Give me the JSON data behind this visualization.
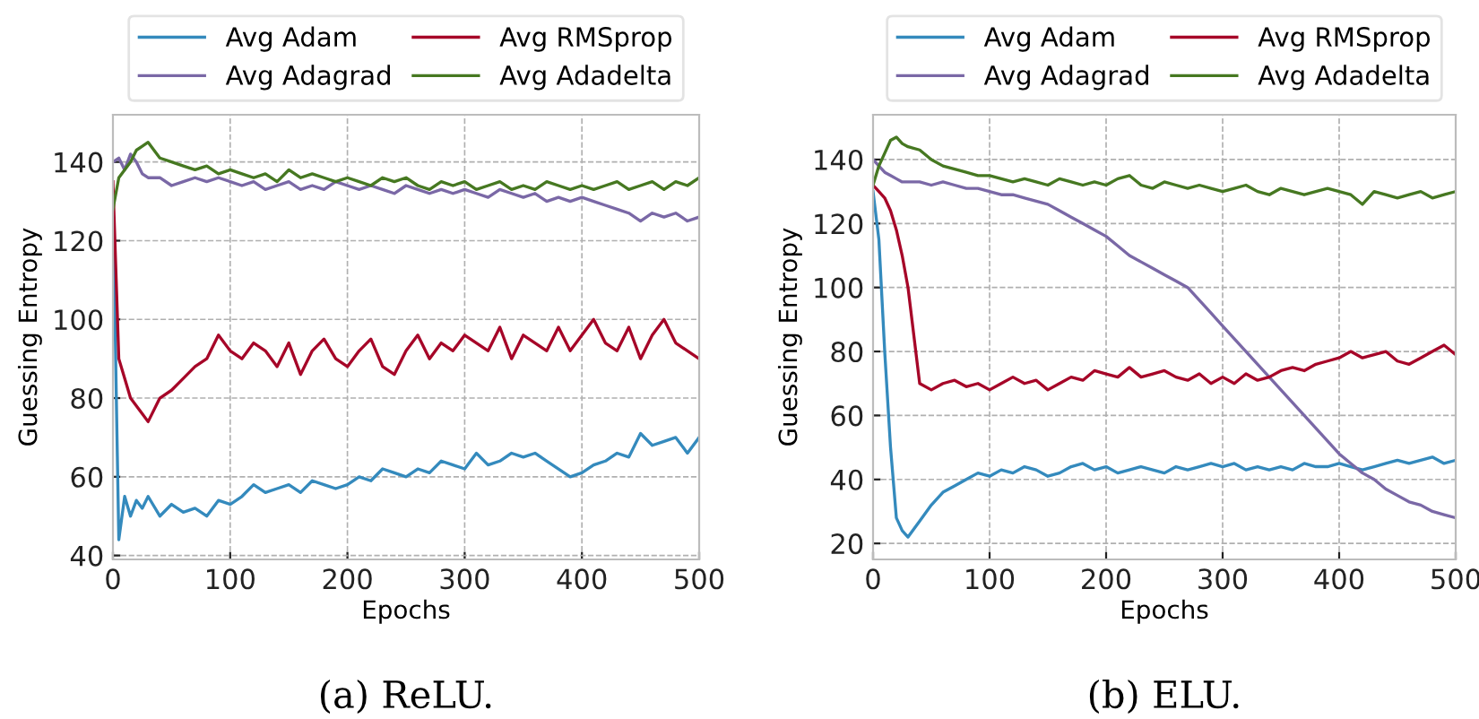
{
  "chart_data": [
    {
      "type": "line",
      "title": "(a) ReLU.",
      "xlabel": "Epochs",
      "ylabel": "Guessing Entropy",
      "x": [
        0,
        5,
        10,
        15,
        20,
        25,
        30,
        40,
        50,
        60,
        70,
        80,
        90,
        100,
        110,
        120,
        130,
        140,
        150,
        160,
        170,
        180,
        190,
        200,
        210,
        220,
        230,
        240,
        250,
        260,
        270,
        280,
        290,
        300,
        310,
        320,
        330,
        340,
        350,
        360,
        370,
        380,
        390,
        400,
        410,
        420,
        430,
        440,
        450,
        460,
        470,
        480,
        490,
        500
      ],
      "series": [
        {
          "name": "Avg Adam",
          "color": "#348abd",
          "values": [
            130,
            44,
            55,
            50,
            54,
            52,
            55,
            50,
            53,
            51,
            52,
            50,
            54,
            53,
            55,
            58,
            56,
            57,
            58,
            56,
            59,
            58,
            57,
            58,
            60,
            59,
            62,
            61,
            60,
            62,
            61,
            64,
            63,
            62,
            66,
            63,
            64,
            66,
            65,
            66,
            64,
            62,
            60,
            61,
            63,
            64,
            66,
            65,
            71,
            68,
            69,
            70,
            66,
            70
          ]
        },
        {
          "name": "Avg Adagrad",
          "color": "#7a68a6",
          "values": [
            140,
            141,
            138,
            142,
            140,
            137,
            136,
            136,
            134,
            135,
            136,
            135,
            136,
            135,
            134,
            135,
            133,
            134,
            135,
            133,
            134,
            133,
            135,
            134,
            133,
            134,
            133,
            132,
            134,
            133,
            132,
            133,
            132,
            133,
            132,
            131,
            133,
            132,
            131,
            132,
            130,
            131,
            130,
            131,
            130,
            129,
            128,
            127,
            125,
            127,
            126,
            127,
            125,
            126
          ]
        },
        {
          "name": "Avg RMSprop",
          "color": "#a60628",
          "values": [
            135,
            90,
            85,
            80,
            78,
            76,
            74,
            80,
            82,
            85,
            88,
            90,
            96,
            92,
            90,
            94,
            92,
            88,
            94,
            86,
            92,
            95,
            90,
            88,
            92,
            95,
            88,
            86,
            92,
            96,
            90,
            94,
            92,
            96,
            94,
            92,
            98,
            90,
            96,
            94,
            92,
            98,
            92,
            96,
            100,
            94,
            92,
            98,
            90,
            96,
            100,
            94,
            92,
            90
          ]
        },
        {
          "name": "Avg Adadelta",
          "color": "#467821",
          "values": [
            128,
            136,
            138,
            140,
            143,
            144,
            145,
            141,
            140,
            139,
            138,
            139,
            137,
            138,
            137,
            136,
            137,
            135,
            138,
            136,
            137,
            136,
            135,
            136,
            135,
            134,
            136,
            135,
            136,
            134,
            133,
            135,
            134,
            135,
            133,
            134,
            135,
            133,
            134,
            133,
            135,
            134,
            133,
            134,
            133,
            134,
            135,
            133,
            134,
            135,
            133,
            135,
            134,
            136
          ]
        }
      ],
      "xlim": [
        0,
        500
      ],
      "ylim": [
        39,
        152
      ],
      "xticks": [
        0,
        100,
        200,
        300,
        400,
        500
      ],
      "yticks": [
        40,
        60,
        80,
        100,
        120,
        140
      ],
      "grid": true,
      "legend": "top",
      "line_style": "solid",
      "marker": "none"
    },
    {
      "type": "line",
      "title": "(b) ELU.",
      "xlabel": "Epochs",
      "ylabel": "Guessing Entropy",
      "x": [
        0,
        5,
        10,
        15,
        20,
        25,
        30,
        40,
        50,
        60,
        70,
        80,
        90,
        100,
        110,
        120,
        130,
        140,
        150,
        160,
        170,
        180,
        190,
        200,
        210,
        220,
        230,
        240,
        250,
        260,
        270,
        280,
        290,
        300,
        310,
        320,
        330,
        340,
        350,
        360,
        370,
        380,
        390,
        400,
        410,
        420,
        430,
        440,
        450,
        460,
        470,
        480,
        490,
        500
      ],
      "series": [
        {
          "name": "Avg Adam",
          "color": "#348abd",
          "values": [
            130,
            115,
            80,
            50,
            28,
            24,
            22,
            27,
            32,
            36,
            38,
            40,
            42,
            41,
            43,
            42,
            44,
            43,
            41,
            42,
            44,
            45,
            43,
            44,
            42,
            43,
            44,
            43,
            42,
            44,
            43,
            44,
            45,
            44,
            45,
            43,
            44,
            43,
            44,
            43,
            45,
            44,
            44,
            45,
            44,
            43,
            44,
            45,
            46,
            45,
            46,
            47,
            45,
            46
          ]
        },
        {
          "name": "Avg Adagrad",
          "color": "#7a68a6",
          "values": [
            140,
            138,
            136,
            135,
            134,
            133,
            133,
            133,
            132,
            133,
            132,
            131,
            131,
            130,
            129,
            129,
            128,
            127,
            126,
            124,
            122,
            120,
            118,
            116,
            113,
            110,
            108,
            106,
            104,
            102,
            100,
            96,
            92,
            88,
            84,
            80,
            76,
            72,
            68,
            64,
            60,
            56,
            52,
            48,
            45,
            42,
            40,
            37,
            35,
            33,
            32,
            30,
            29,
            28
          ]
        },
        {
          "name": "Avg RMSprop",
          "color": "#a60628",
          "values": [
            132,
            130,
            128,
            124,
            118,
            110,
            100,
            70,
            68,
            70,
            71,
            69,
            70,
            68,
            70,
            72,
            70,
            71,
            68,
            70,
            72,
            71,
            74,
            73,
            72,
            75,
            72,
            73,
            74,
            72,
            71,
            73,
            70,
            72,
            70,
            73,
            71,
            72,
            74,
            75,
            74,
            76,
            77,
            78,
            80,
            78,
            79,
            80,
            77,
            76,
            78,
            80,
            82,
            79
          ]
        },
        {
          "name": "Avg Adadelta",
          "color": "#467821",
          "values": [
            132,
            138,
            142,
            146,
            147,
            145,
            144,
            143,
            140,
            138,
            137,
            136,
            135,
            135,
            134,
            133,
            134,
            133,
            132,
            134,
            133,
            132,
            133,
            132,
            134,
            135,
            132,
            131,
            133,
            132,
            131,
            132,
            131,
            130,
            131,
            132,
            130,
            129,
            131,
            130,
            129,
            130,
            131,
            130,
            129,
            126,
            130,
            129,
            128,
            129,
            130,
            128,
            129,
            130
          ]
        }
      ],
      "xlim": [
        0,
        500
      ],
      "ylim": [
        15,
        154
      ],
      "xticks": [
        0,
        100,
        200,
        300,
        400,
        500
      ],
      "yticks": [
        20,
        40,
        60,
        80,
        100,
        120,
        140
      ],
      "grid": true,
      "legend": "top",
      "line_style": "solid",
      "marker": "none"
    }
  ]
}
